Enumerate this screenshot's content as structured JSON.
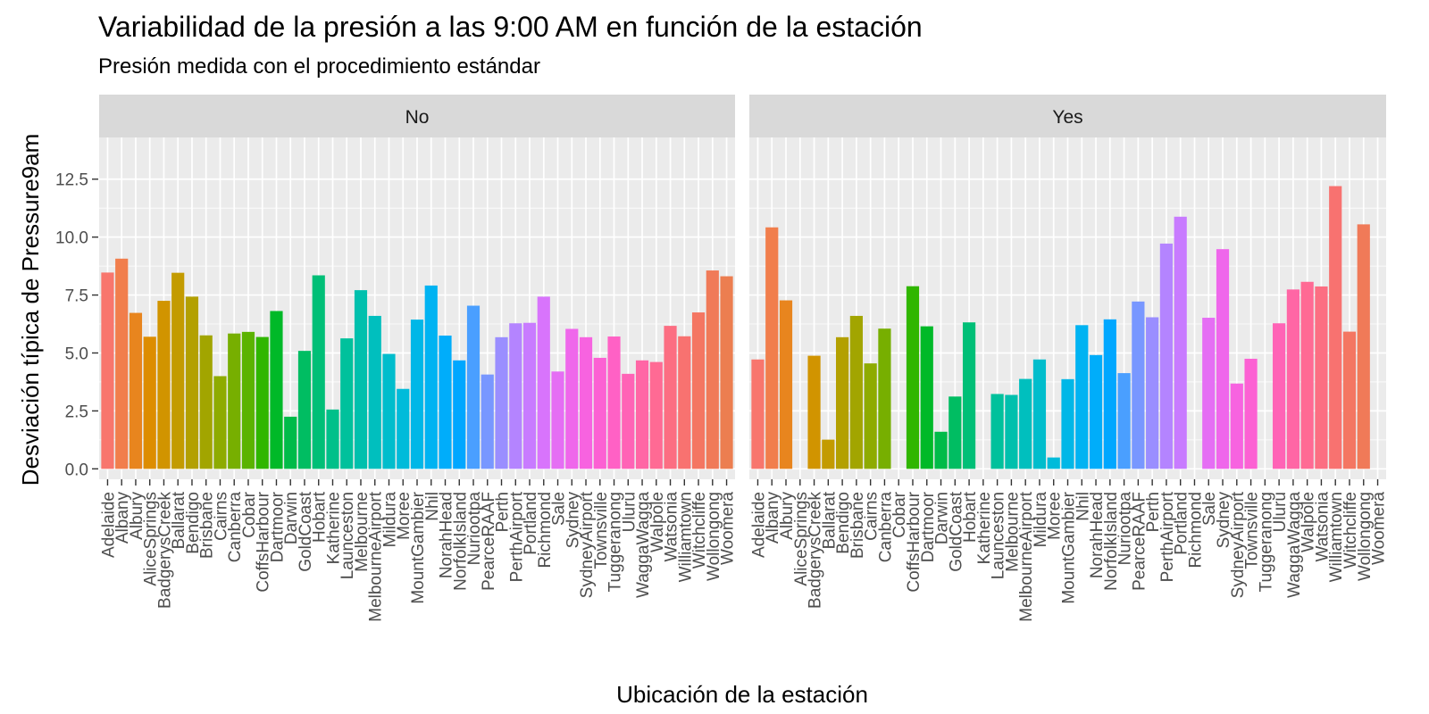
{
  "chart_data": {
    "type": "bar",
    "title": "Variabilidad de la presión a las 9:00 AM en función de la estación",
    "subtitle": "Presión medida con el procedimiento estándar",
    "xlabel": "Ubicación de la estación",
    "ylabel": "Desviación típica  de Pressure9am",
    "ylim": [
      -0.45,
      14.3
    ],
    "yticks": [
      "0.0",
      "2.5",
      "5.0",
      "7.5",
      "10.0",
      "12.5"
    ],
    "categories": [
      "Adelaide",
      "Albany",
      "Albury",
      "AliceSprings",
      "BadgerysCreek",
      "Ballarat",
      "Bendigo",
      "Brisbane",
      "Cairns",
      "Canberra",
      "Cobar",
      "CoffsHarbour",
      "Dartmoor",
      "Darwin",
      "GoldCoast",
      "Hobart",
      "Katherine",
      "Launceston",
      "Melbourne",
      "MelbourneAirport",
      "Mildura",
      "Moree",
      "MountGambier",
      "Nhil",
      "NorahHead",
      "NorfolkIsland",
      "Nuriootpa",
      "PearceRAAF",
      "Perth",
      "PerthAirport",
      "Portland",
      "Richmond",
      "Sale",
      "Sydney",
      "SydneyAirport",
      "Townsville",
      "Tuggeranong",
      "Uluru",
      "WaggaWagga",
      "Walpole",
      "Watsonia",
      "Williamtown",
      "Witchcliffe",
      "Wollongong",
      "Woomera"
    ],
    "colors": [
      "#F8766D",
      "#F17E4C",
      "#E8851E",
      "#DD8D00",
      "#D19400",
      "#C39B00",
      "#B3A000",
      "#A2A500",
      "#8EAB00",
      "#77AF00",
      "#5BB300",
      "#30B600",
      "#00B928",
      "#00BB49",
      "#00BD62",
      "#00BF77",
      "#00C08A",
      "#00C19C",
      "#00C0AD",
      "#00BFBE",
      "#00BDCC",
      "#00BBDA",
      "#00B7E7",
      "#00B3F2",
      "#00ADFA",
      "#00A7FF",
      "#4A9FFF",
      "#7897FF",
      "#9A8EFF",
      "#B484FF",
      "#C87BFF",
      "#D874FC",
      "#E56EF4",
      "#EF67EB",
      "#F763E0",
      "#FC61D3",
      "#FF61C5",
      "#FF63B6",
      "#FF66A5",
      "#FF6A94",
      "#FC6E82",
      "#F87270",
      "#F47662",
      "#F07A58",
      "#EC7E50"
    ],
    "facets": [
      {
        "label": "No",
        "values": [
          8.47,
          9.07,
          6.73,
          5.7,
          7.25,
          8.46,
          7.43,
          5.76,
          4.0,
          5.84,
          5.91,
          5.69,
          6.81,
          2.25,
          5.09,
          8.35,
          2.56,
          5.63,
          7.71,
          6.6,
          4.96,
          3.45,
          6.44,
          7.91,
          5.75,
          4.68,
          7.04,
          4.07,
          5.68,
          6.28,
          6.3,
          7.43,
          4.2,
          6.04,
          5.68,
          4.79,
          5.71,
          4.1,
          4.68,
          4.61,
          6.17,
          5.72,
          6.75,
          8.56,
          8.31
        ]
      },
      {
        "label": "Yes",
        "values": [
          4.72,
          10.42,
          7.27,
          null,
          4.88,
          1.26,
          5.68,
          6.6,
          4.55,
          6.05,
          null,
          7.88,
          6.15,
          1.6,
          3.12,
          6.32,
          null,
          3.23,
          3.19,
          3.88,
          4.72,
          0.49,
          3.87,
          6.2,
          4.91,
          6.45,
          4.13,
          7.22,
          6.54,
          9.72,
          10.88,
          null,
          6.52,
          9.48,
          3.68,
          4.75,
          null,
          6.28,
          7.74,
          8.07,
          7.87,
          12.2,
          5.92,
          10.55,
          null
        ]
      }
    ]
  }
}
